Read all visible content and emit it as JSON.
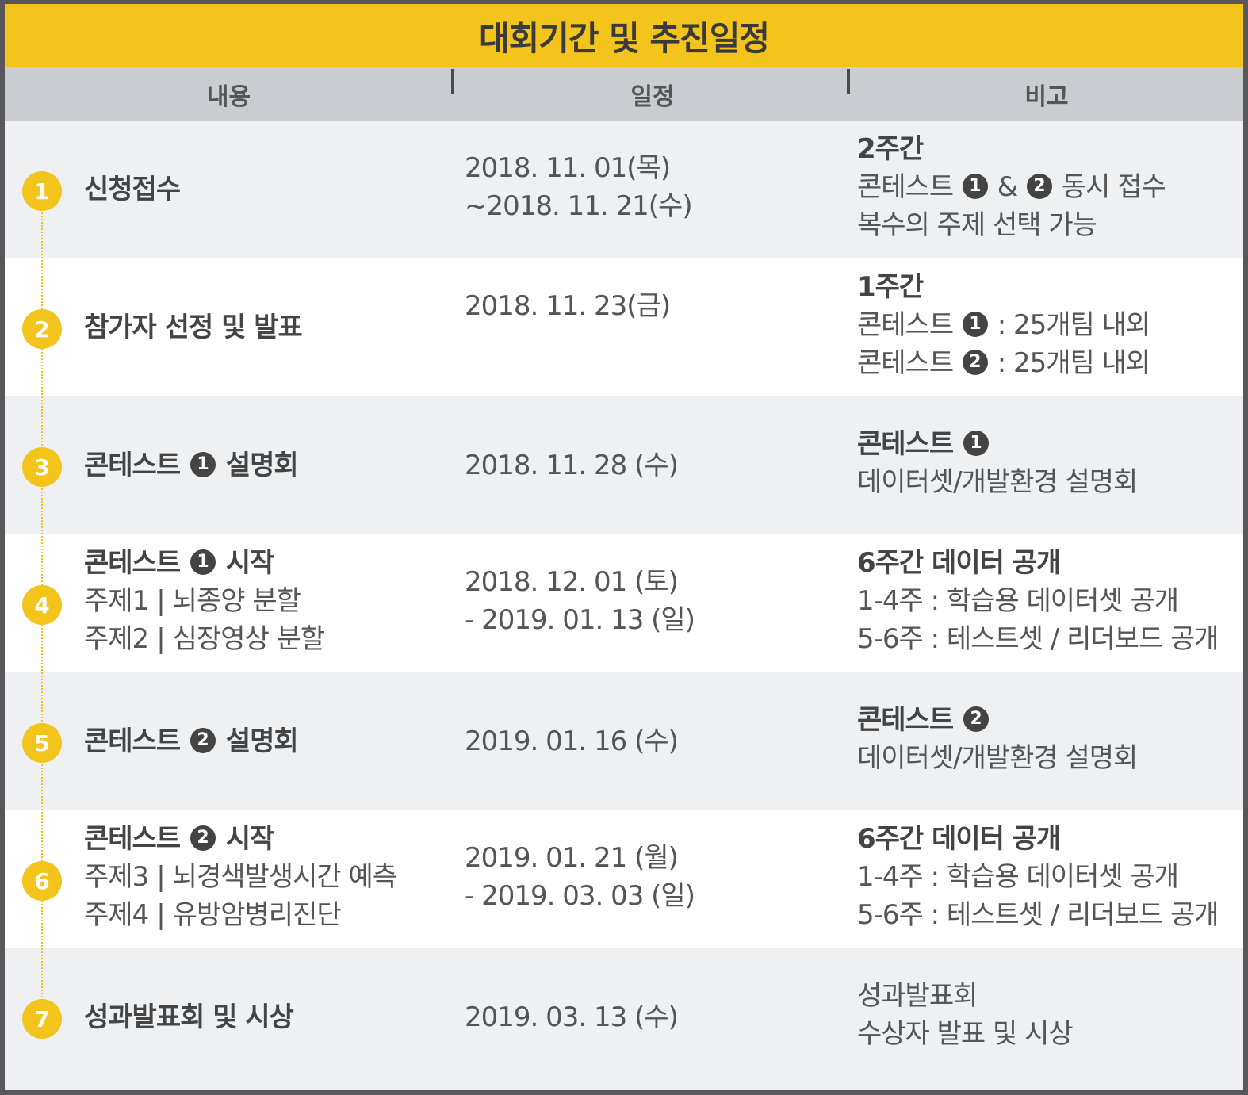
{
  "title": "대회기간 및 추진일정",
  "headers": {
    "content": "내용",
    "schedule": "일정",
    "note": "비고"
  },
  "circled": {
    "one": "1",
    "two": "2"
  },
  "rows": [
    {
      "num": "1",
      "content": {
        "main": "신청접수"
      },
      "date": [
        "2018. 11. 01(목)",
        "~2018. 11. 21(수)"
      ],
      "note": {
        "strong": "2주간",
        "line1a": "콘테스트",
        "line1b": "&",
        "line1c": "동시 접수",
        "line2": "복수의 주제 선택 가능"
      }
    },
    {
      "num": "2",
      "content": {
        "main": "참가자 선정 및 발표"
      },
      "date": [
        "2018. 11. 23(금)"
      ],
      "note": {
        "strong": "1주간",
        "line1a": "콘테스트",
        "line1b": ": 25개팀 내외",
        "line2a": "콘테스트",
        "line2b": ": 25개팀 내외"
      }
    },
    {
      "num": "3",
      "content": {
        "main_a": "콘테스트",
        "main_b": "설명회"
      },
      "date": [
        "2018. 11. 28 (수)"
      ],
      "note": {
        "strong": "콘테스트",
        "line1": "데이터셋/개발환경 설명회"
      }
    },
    {
      "num": "4",
      "content": {
        "main_a": "콘테스트",
        "main_b": "시작",
        "sub1a": "주제1",
        "sub1b": "뇌종양 분할",
        "sub2a": "주제2",
        "sub2b": "심장영상 분할"
      },
      "date": [
        "2018. 12. 01 (토)",
        "- 2019. 01. 13 (일)"
      ],
      "note": {
        "strong": "6주간 데이터 공개",
        "line1": "1-4주 : 학습용 데이터셋 공개",
        "line2": "5-6주 : 테스트셋 / 리더보드 공개"
      }
    },
    {
      "num": "5",
      "content": {
        "main_a": "콘테스트",
        "main_b": "설명회"
      },
      "date": [
        "2019. 01. 16 (수)"
      ],
      "note": {
        "strong": "콘테스트",
        "line1": "데이터셋/개발환경 설명회"
      }
    },
    {
      "num": "6",
      "content": {
        "main_a": "콘테스트",
        "main_b": "시작",
        "sub1a": "주제3",
        "sub1b": "뇌경색발생시간 예측",
        "sub2a": "주제4",
        "sub2b": "유방암병리진단"
      },
      "date": [
        "2019. 01. 21 (월)",
        "- 2019. 03. 03 (일)"
      ],
      "note": {
        "strong": "6주간 데이터 공개",
        "line1": "1-4주 : 학습용 데이터셋 공개",
        "line2": "5-6주 : 테스트셋 / 리더보드 공개"
      }
    },
    {
      "num": "7",
      "content": {
        "main": "성과발표회 및 시상"
      },
      "date": [
        "2019. 03. 13 (수)"
      ],
      "note": {
        "line1": "성과발표회",
        "line2": "수상자 발표 및 시상"
      }
    }
  ],
  "colors": {
    "accent": "#f2c41c",
    "header_bg": "#c9ccd0",
    "row_gray": "#eef0f2",
    "row_white": "#ffffff"
  }
}
